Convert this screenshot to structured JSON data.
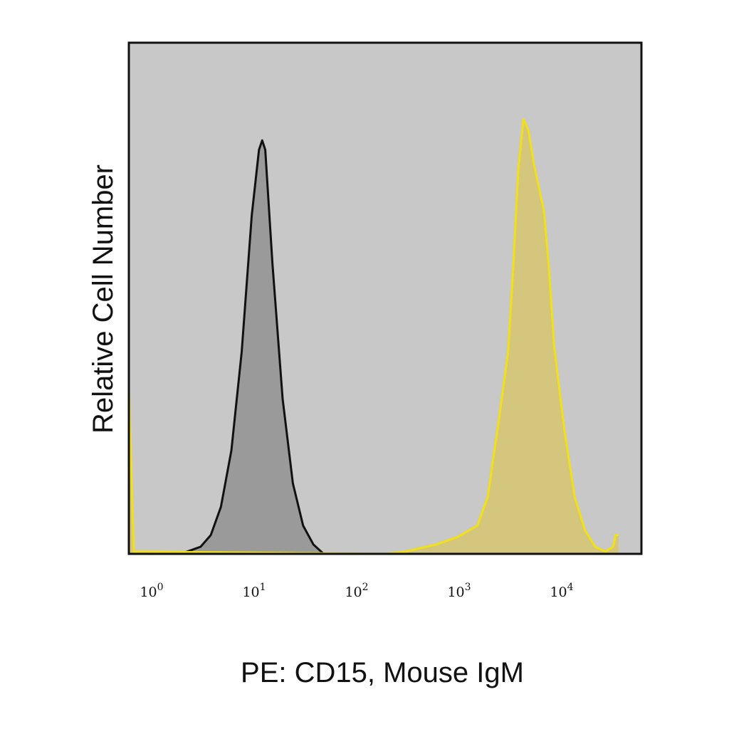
{
  "chart_data": {
    "type": "area",
    "title": "",
    "xlabel": "PE: CD15, Mouse IgM",
    "ylabel": "Relative Cell Number",
    "x_scale": "log10",
    "xlim": [
      1,
      60000
    ],
    "ylim": [
      0,
      100
    ],
    "grid": false,
    "plot_background": "#c8c8c8",
    "x_ticks": [
      {
        "value": 1,
        "base": "10",
        "exp": "0"
      },
      {
        "value": 10,
        "base": "10",
        "exp": "1"
      },
      {
        "value": 100,
        "base": "10",
        "exp": "2"
      },
      {
        "value": 1000,
        "base": "10",
        "exp": "3"
      },
      {
        "value": 10000,
        "base": "10",
        "exp": "4"
      }
    ],
    "series": [
      {
        "key": "isotype-control",
        "fill": "#9a9a9a",
        "stroke": "#111111",
        "points": [
          [
            2.4,
            0.0
          ],
          [
            3.6,
            0.4
          ],
          [
            5.0,
            1.5
          ],
          [
            6.3,
            4.0
          ],
          [
            7.9,
            10.0
          ],
          [
            10.0,
            22.0
          ],
          [
            12.6,
            43.0
          ],
          [
            15.8,
            72.0
          ],
          [
            18.6,
            86.0
          ],
          [
            20.0,
            88.0
          ],
          [
            21.4,
            86.0
          ],
          [
            25.1,
            62.0
          ],
          [
            31.6,
            33.0
          ],
          [
            39.8,
            15.0
          ],
          [
            50.1,
            6.0
          ],
          [
            63.1,
            2.0
          ],
          [
            79.4,
            0.0
          ]
        ]
      },
      {
        "key": "cd15-stain",
        "fill": "#d4c67c",
        "stroke": "#f2e017",
        "points": [
          [
            1.0,
            35.0
          ],
          [
            1.12,
            0.5
          ],
          [
            316,
            0.0
          ],
          [
            501,
            0.5
          ],
          [
            1000,
            2.0
          ],
          [
            1580,
            3.5
          ],
          [
            2510,
            6.0
          ],
          [
            3160,
            12.0
          ],
          [
            3980,
            27.0
          ],
          [
            5010,
            43.0
          ],
          [
            5620,
            61.0
          ],
          [
            6310,
            82.0
          ],
          [
            7080,
            92.5
          ],
          [
            7940,
            90.0
          ],
          [
            8910,
            83.0
          ],
          [
            10000,
            78.0
          ],
          [
            11200,
            73.0
          ],
          [
            12600,
            60.0
          ],
          [
            14100,
            44.0
          ],
          [
            17800,
            26.0
          ],
          [
            22400,
            12.0
          ],
          [
            28200,
            5.0
          ],
          [
            35500,
            1.5
          ],
          [
            44700,
            0.5
          ],
          [
            53000,
            1.5
          ],
          [
            56000,
            4.0
          ],
          [
            60000,
            4.0
          ]
        ]
      }
    ]
  }
}
